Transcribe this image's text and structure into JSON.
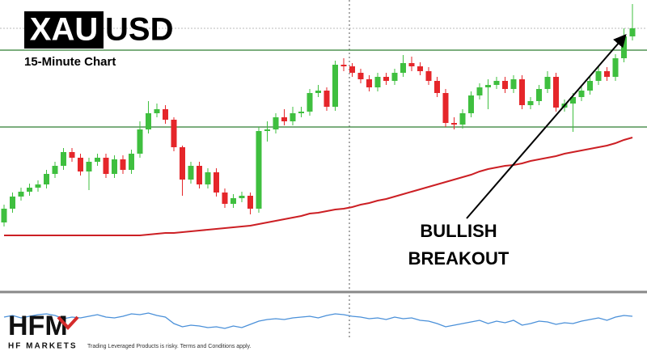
{
  "chart_data": {
    "type": "candlestick",
    "title_box": "XAU",
    "title": "USD",
    "subtitle": "15-Minute Chart",
    "annotation": [
      "BULLISH",
      "BREAKOUT"
    ],
    "ylim": [
      0,
      360
    ],
    "up_color": "#3fbf3f",
    "down_color": "#e5262a",
    "open": [
      85,
      102,
      117,
      123,
      128,
      132,
      145,
      155,
      172,
      165,
      148,
      160,
      165,
      145,
      163,
      150,
      170,
      200,
      220,
      225,
      212,
      178,
      138,
      155,
      132,
      147,
      122,
      108,
      115,
      118,
      102,
      198,
      200,
      215,
      210,
      220,
      222,
      245,
      248,
      228,
      280,
      278,
      270,
      262,
      252,
      265,
      260,
      270,
      282,
      278,
      272,
      260,
      245,
      208,
      206,
      220,
      242,
      252,
      255,
      260,
      250,
      262,
      230,
      235,
      250,
      265,
      227,
      232,
      240,
      248,
      260,
      272,
      265,
      288,
      315
    ],
    "high": [
      107,
      122,
      128,
      133,
      137,
      150,
      160,
      177,
      177,
      170,
      165,
      170,
      170,
      168,
      168,
      175,
      210,
      235,
      232,
      230,
      215,
      180,
      160,
      160,
      152,
      152,
      127,
      120,
      123,
      122,
      203,
      210,
      220,
      225,
      228,
      228,
      250,
      255,
      252,
      285,
      288,
      282,
      275,
      267,
      270,
      270,
      275,
      292,
      290,
      283,
      277,
      265,
      250,
      215,
      225,
      247,
      257,
      262,
      265,
      265,
      267,
      267,
      240,
      255,
      272,
      270,
      237,
      245,
      253,
      265,
      277,
      277,
      293,
      325,
      355
    ],
    "low": [
      80,
      97,
      112,
      118,
      123,
      127,
      140,
      150,
      160,
      143,
      125,
      155,
      140,
      140,
      145,
      145,
      165,
      195,
      215,
      207,
      173,
      118,
      133,
      127,
      127,
      117,
      103,
      103,
      110,
      95,
      97,
      185,
      195,
      205,
      205,
      215,
      217,
      240,
      223,
      223,
      272,
      265,
      257,
      247,
      247,
      255,
      255,
      265,
      272,
      267,
      255,
      240,
      203,
      200,
      201,
      215,
      237,
      225,
      250,
      245,
      245,
      225,
      225,
      230,
      245,
      222,
      222,
      197,
      235,
      243,
      255,
      260,
      260,
      283,
      310
    ],
    "close": [
      102,
      117,
      123,
      128,
      132,
      145,
      155,
      172,
      165,
      148,
      160,
      165,
      145,
      163,
      150,
      170,
      200,
      220,
      225,
      212,
      178,
      138,
      155,
      132,
      147,
      122,
      108,
      115,
      118,
      102,
      198,
      200,
      215,
      210,
      220,
      222,
      245,
      248,
      228,
      280,
      278,
      270,
      262,
      252,
      265,
      260,
      270,
      282,
      278,
      272,
      260,
      245,
      208,
      206,
      220,
      242,
      252,
      255,
      260,
      250,
      262,
      230,
      235,
      250,
      265,
      227,
      232,
      240,
      248,
      260,
      272,
      265,
      288,
      315,
      325
    ],
    "moving_average": {
      "color": "#cc1f24",
      "values": [
        69,
        69,
        69,
        69,
        69,
        69,
        69,
        69,
        69,
        69,
        69,
        69,
        69,
        69,
        69,
        69,
        69,
        70,
        71,
        72,
        72,
        73,
        74,
        75,
        76,
        77,
        78,
        79,
        80,
        81,
        83,
        85,
        87,
        89,
        91,
        93,
        96,
        97,
        99,
        101,
        102,
        104,
        107,
        109,
        112,
        114,
        117,
        120,
        123,
        126,
        129,
        132,
        135,
        138,
        141,
        144,
        148,
        151,
        153,
        155,
        156,
        158,
        161,
        163,
        165,
        167,
        170,
        172,
        174,
        176,
        178,
        180,
        183,
        187,
        190
      ]
    },
    "levels": {
      "color": "#2e7d32",
      "values": [
        203,
        298
      ]
    },
    "price_line": 325,
    "oscillator": {
      "color": "#4a90d9",
      "ylim": [
        0,
        68
      ],
      "values": [
        38,
        40,
        37,
        39,
        41,
        42,
        40,
        36,
        38,
        37,
        39,
        41,
        38,
        37,
        39,
        42,
        41,
        43,
        40,
        38,
        30,
        26,
        28,
        27,
        25,
        26,
        24,
        27,
        25,
        29,
        33,
        35,
        36,
        35,
        37,
        38,
        39,
        37,
        40,
        42,
        41,
        39,
        38,
        36,
        37,
        35,
        38,
        36,
        37,
        34,
        33,
        30,
        26,
        28,
        30,
        32,
        34,
        30,
        33,
        31,
        34,
        28,
        30,
        33,
        32,
        29,
        31,
        30,
        33,
        35,
        37,
        34,
        38,
        40,
        39
      ]
    }
  },
  "logo": {
    "mark": "HFM",
    "name": "HF MARKETS"
  },
  "disclaimer": "Trading Leveraged Products is risky. Terms and Conditions apply."
}
